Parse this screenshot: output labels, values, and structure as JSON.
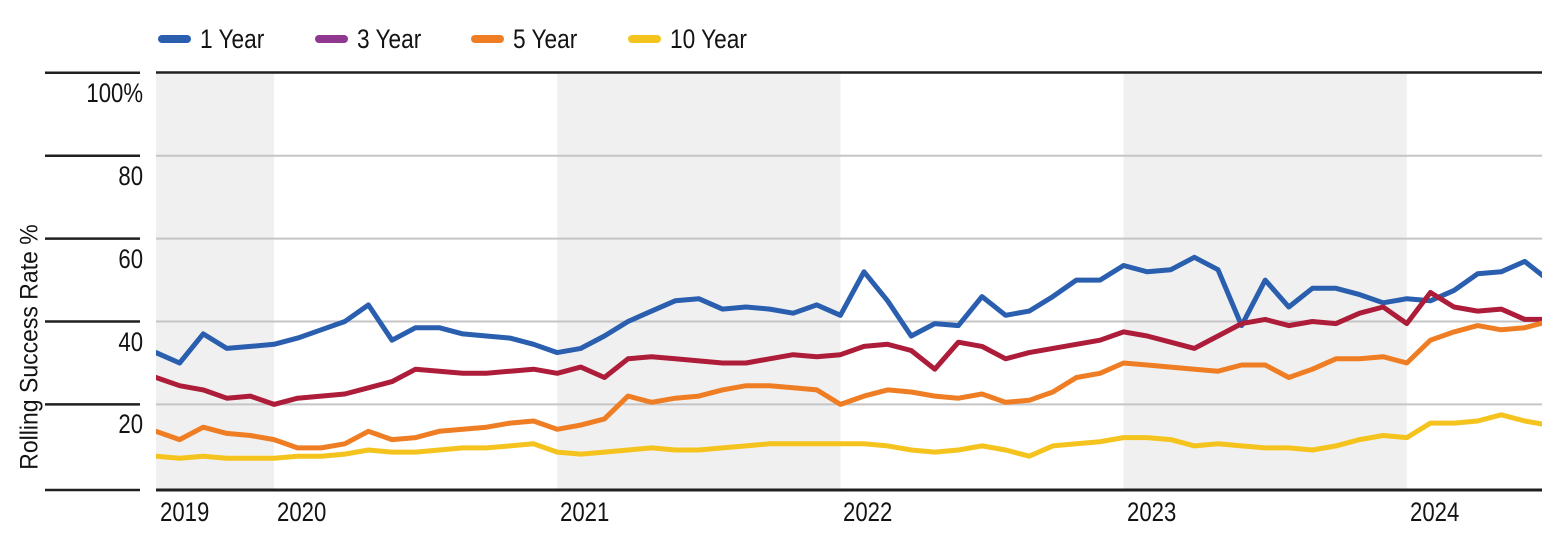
{
  "colors": {
    "background": "#FFFFFF",
    "band": "#F0F0F0",
    "gridline": "#C5C5C7",
    "axis": "#202020",
    "text": "#131313"
  },
  "chart_data": {
    "type": "line",
    "title": "",
    "ylabel": "Rolling Success Rate %",
    "ylim": [
      0,
      100
    ],
    "grid": "horizontal",
    "legend_position": "top-left",
    "y_ticks": [
      {
        "value": 100,
        "label": "100%"
      },
      {
        "value": 80,
        "label": "80"
      },
      {
        "value": 60,
        "label": "60"
      },
      {
        "value": 40,
        "label": "40"
      },
      {
        "value": 20,
        "label": "20"
      }
    ],
    "x_axis": {
      "first_point": "2019-08",
      "interval": "monthly",
      "n_points": 60,
      "jan_2020_index": 5,
      "year_labels": [
        "2019",
        "2020",
        "2021",
        "2022",
        "2023",
        "2024"
      ],
      "shaded_years": [
        "2019",
        "2021",
        "2023"
      ]
    },
    "series": [
      {
        "name": "1 Year",
        "line_color": "#2A5EAE",
        "legend_color": "#2A5EAE",
        "values": [
          32.5,
          30,
          37,
          33.5,
          34,
          34.5,
          36,
          38,
          40,
          44,
          35.5,
          38.5,
          38.5,
          37,
          36.5,
          36,
          34.5,
          32.5,
          33.5,
          36.5,
          40,
          42.5,
          45,
          45.5,
          43,
          43.5,
          43,
          42,
          44,
          41.5,
          52,
          45,
          36.5,
          39.5,
          39,
          46,
          41.5,
          42.5,
          46,
          50,
          50,
          53.5,
          52,
          52.5,
          55.5,
          52.5,
          39,
          50,
          43.5,
          48,
          48,
          46.5,
          44.5,
          45.5,
          45,
          47.5,
          51.5,
          52,
          54.5,
          50
        ]
      },
      {
        "name": "3 Year",
        "line_color": "#AD1D3A",
        "legend_color": "#903890",
        "values": [
          26.5,
          24.5,
          23.5,
          21.5,
          22,
          20,
          21.5,
          22,
          22.5,
          24,
          25.5,
          28.5,
          28,
          27.5,
          27.5,
          28,
          28.5,
          27.5,
          29,
          26.5,
          31,
          31.5,
          31,
          30.5,
          30,
          30,
          31,
          32,
          31.5,
          32,
          34,
          34.5,
          33,
          28.5,
          35,
          34,
          31,
          32.5,
          33.5,
          34.5,
          35.5,
          37.5,
          36.5,
          35,
          33.5,
          36.5,
          39.5,
          40.5,
          39,
          40,
          39.5,
          42,
          43.5,
          39.5,
          47,
          43.5,
          42.5,
          43,
          40.5,
          40.5
        ]
      },
      {
        "name": "5 Year",
        "line_color": "#EF7D23",
        "legend_color": "#EF7D23",
        "values": [
          13.5,
          11.5,
          14.5,
          13,
          12.5,
          11.5,
          9.5,
          9.5,
          10.5,
          13.5,
          11.5,
          12,
          13.5,
          14,
          14.5,
          15.5,
          16,
          14,
          15,
          16.5,
          22,
          20.5,
          21.5,
          22,
          23.5,
          24.5,
          24.5,
          24,
          23.5,
          20,
          22,
          23.5,
          23,
          22,
          21.5,
          22.5,
          20.5,
          21,
          23,
          26.5,
          27.5,
          30,
          29.5,
          29,
          28.5,
          28,
          29.5,
          29.5,
          26.5,
          28.5,
          31,
          31,
          31.5,
          30,
          35.5,
          37.5,
          39,
          38,
          38.5,
          40
        ]
      },
      {
        "name": "10 Year",
        "line_color": "#F5C31D",
        "legend_color": "#F5C31D",
        "values": [
          7.5,
          7,
          7.5,
          7,
          7,
          7,
          7.5,
          7.5,
          8,
          9,
          8.5,
          8.5,
          9,
          9.5,
          9.5,
          10,
          10.5,
          8.5,
          8,
          8.5,
          9,
          9.5,
          9,
          9,
          9.5,
          10,
          10.5,
          10.5,
          10.5,
          10.5,
          10.5,
          10,
          9,
          8.5,
          9,
          10,
          9,
          7.5,
          10,
          10.5,
          11,
          12,
          12,
          11.5,
          10,
          10.5,
          10,
          9.5,
          9.5,
          9,
          10,
          11.5,
          12.5,
          12,
          15.5,
          15.5,
          16,
          17.5,
          16,
          15
        ]
      }
    ]
  }
}
